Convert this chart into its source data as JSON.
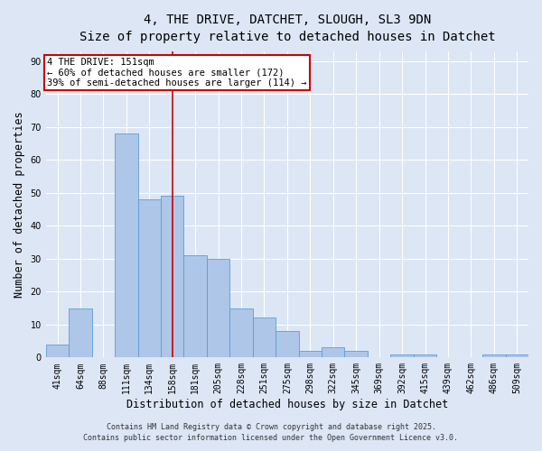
{
  "title1": "4, THE DRIVE, DATCHET, SLOUGH, SL3 9DN",
  "title2": "Size of property relative to detached houses in Datchet",
  "xlabel": "Distribution of detached houses by size in Datchet",
  "ylabel": "Number of detached properties",
  "categories": [
    "41sqm",
    "64sqm",
    "88sqm",
    "111sqm",
    "134sqm",
    "158sqm",
    "181sqm",
    "205sqm",
    "228sqm",
    "251sqm",
    "275sqm",
    "298sqm",
    "322sqm",
    "345sqm",
    "369sqm",
    "392sqm",
    "415sqm",
    "439sqm",
    "462sqm",
    "486sqm",
    "509sqm"
  ],
  "values": [
    4,
    15,
    0,
    68,
    48,
    49,
    31,
    30,
    15,
    12,
    8,
    2,
    3,
    2,
    0,
    1,
    1,
    0,
    0,
    1,
    1
  ],
  "bar_color": "#aec6e8",
  "bar_edge_color": "#5a9fd4",
  "red_line_index": 5,
  "ylim": [
    0,
    93
  ],
  "yticks": [
    0,
    10,
    20,
    30,
    40,
    50,
    60,
    70,
    80,
    90
  ],
  "annotation_line1": "4 THE DRIVE: 151sqm",
  "annotation_line2": "← 60% of detached houses are smaller (172)",
  "annotation_line3": "39% of semi-detached houses are larger (114) →",
  "annotation_box_color": "#ffffff",
  "annotation_box_edge_color": "#cc0000",
  "background_color": "#dce6f5",
  "footnote1": "Contains HM Land Registry data © Crown copyright and database right 2025.",
  "footnote2": "Contains public sector information licensed under the Open Government Licence v3.0.",
  "title_fontsize": 10,
  "subtitle_fontsize": 9,
  "axis_label_fontsize": 8.5,
  "tick_fontsize": 7,
  "annotation_fontsize": 7.5,
  "footnote_fontsize": 6
}
